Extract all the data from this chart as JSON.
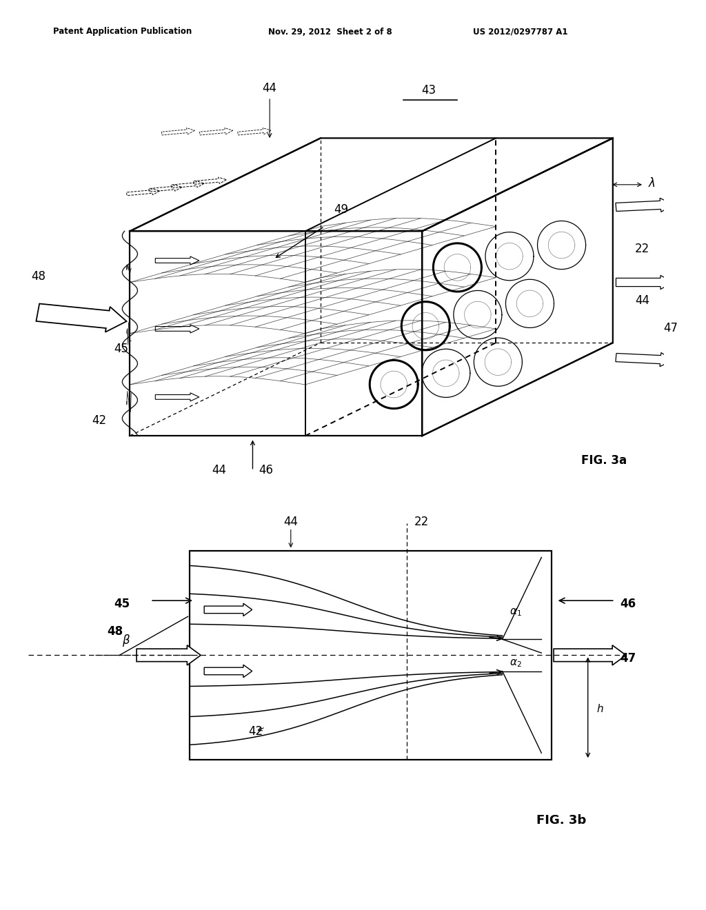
{
  "header_left": "Patent Application Publication",
  "header_center": "Nov. 29, 2012  Sheet 2 of 8",
  "header_right": "US 2012/0297787 A1",
  "fig3a_label": "FIG. 3a",
  "fig3b_label": "FIG. 3b",
  "bg": "#ffffff",
  "black": "#000000",
  "gray": "#888888",
  "lgray": "#cccccc"
}
